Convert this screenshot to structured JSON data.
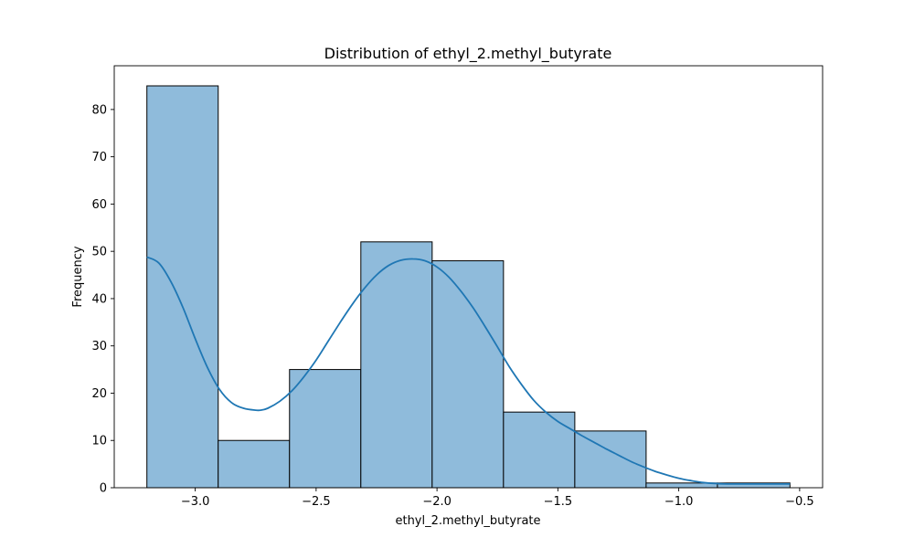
{
  "chart_data": {
    "type": "bar",
    "subtype": "histogram-with-kde",
    "title": "Distribution of ethyl_2.methyl_butyrate",
    "xlabel": "ethyl_2.methyl_butyrate",
    "ylabel": "Frequency",
    "xlim": [
      -3.335,
      -0.405
    ],
    "ylim": [
      0,
      89.25
    ],
    "grid": false,
    "legend": "none",
    "bins": [
      {
        "x0": -3.2,
        "x1": -2.905,
        "count": 85
      },
      {
        "x0": -2.905,
        "x1": -2.61,
        "count": 10
      },
      {
        "x0": -2.61,
        "x1": -2.315,
        "count": 25
      },
      {
        "x0": -2.315,
        "x1": -2.02,
        "count": 52
      },
      {
        "x0": -2.02,
        "x1": -1.725,
        "count": 48
      },
      {
        "x0": -1.725,
        "x1": -1.43,
        "count": 16
      },
      {
        "x0": -1.43,
        "x1": -1.135,
        "count": 12
      },
      {
        "x0": -1.135,
        "x1": -0.84,
        "count": 1
      },
      {
        "x0": -0.84,
        "x1": -0.54,
        "count": 1
      }
    ],
    "kde": {
      "x": [
        -3.2,
        -3.15,
        -3.1,
        -3.05,
        -3.0,
        -2.95,
        -2.9,
        -2.85,
        -2.8,
        -2.75,
        -2.73,
        -2.7,
        -2.65,
        -2.6,
        -2.55,
        -2.5,
        -2.45,
        -2.4,
        -2.35,
        -2.3,
        -2.25,
        -2.2,
        -2.15,
        -2.1,
        -2.05,
        -2.0,
        -1.95,
        -1.9,
        -1.85,
        -1.8,
        -1.75,
        -1.7,
        -1.65,
        -1.6,
        -1.55,
        -1.5,
        -1.45,
        -1.4,
        -1.35,
        -1.3,
        -1.25,
        -1.2,
        -1.15,
        -1.1,
        -1.05,
        -1.0,
        -0.95,
        -0.9,
        -0.85,
        -0.8,
        -0.75,
        -0.7,
        -0.65,
        -0.6,
        -0.54
      ],
      "y": [
        48.8,
        47.5,
        43.5,
        38.0,
        31.5,
        25.5,
        20.8,
        18.0,
        16.8,
        16.4,
        16.4,
        16.8,
        18.3,
        20.5,
        23.5,
        27.0,
        31.0,
        35.0,
        38.8,
        42.2,
        45.0,
        47.0,
        48.1,
        48.4,
        48.0,
        46.7,
        44.5,
        41.5,
        38.0,
        34.0,
        29.8,
        25.5,
        21.8,
        18.5,
        16.0,
        14.0,
        12.5,
        11.0,
        9.6,
        8.2,
        6.9,
        5.6,
        4.5,
        3.5,
        2.7,
        2.0,
        1.5,
        1.1,
        0.9,
        0.8,
        0.8,
        0.8,
        0.8,
        0.8,
        0.8
      ]
    },
    "x_ticks": [
      {
        "value": -3.0,
        "label": "−3.0"
      },
      {
        "value": -2.5,
        "label": "−2.5"
      },
      {
        "value": -2.0,
        "label": "−2.0"
      },
      {
        "value": -1.5,
        "label": "−1.5"
      },
      {
        "value": -1.0,
        "label": "−1.0"
      },
      {
        "value": -0.5,
        "label": "−0.5"
      }
    ],
    "y_ticks": [
      {
        "value": 0,
        "label": "0"
      },
      {
        "value": 10,
        "label": "10"
      },
      {
        "value": 20,
        "label": "20"
      },
      {
        "value": 30,
        "label": "30"
      },
      {
        "value": 40,
        "label": "40"
      },
      {
        "value": 50,
        "label": "50"
      },
      {
        "value": 60,
        "label": "60"
      },
      {
        "value": 70,
        "label": "70"
      },
      {
        "value": 80,
        "label": "80"
      }
    ],
    "colors": {
      "bar_fill": "#8fbbdb",
      "bar_edge": "#000000",
      "kde_line": "#1f77b4",
      "axes": "#000000"
    }
  }
}
